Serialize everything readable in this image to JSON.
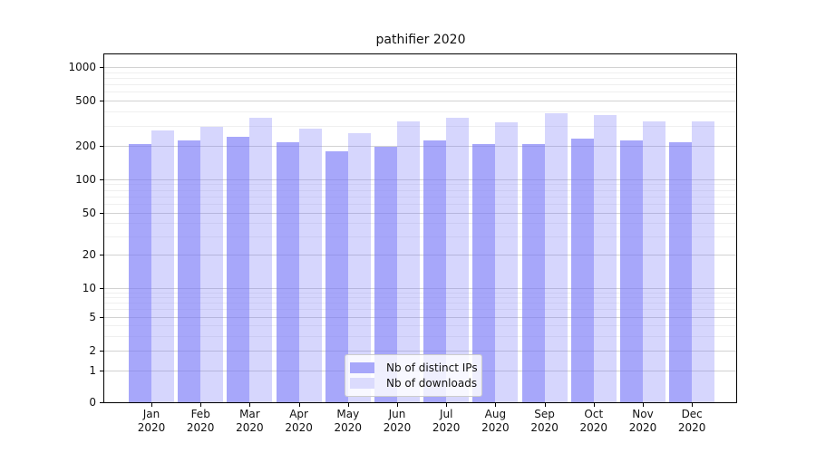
{
  "chart_data": {
    "type": "bar",
    "title": "pathifier 2020",
    "categories": [
      "Jan",
      "Feb",
      "Mar",
      "Apr",
      "May",
      "Jun",
      "Jul",
      "Aug",
      "Sep",
      "Oct",
      "Nov",
      "Dec"
    ],
    "category_year": "2020",
    "series": [
      {
        "name": "Nb of distinct IPs",
        "values": [
          205,
          220,
          240,
          215,
          178,
          195,
          220,
          205,
          205,
          230,
          220,
          215
        ],
        "color": "rgba(120,120,248,0.65)",
        "legend_color": "#a7a7fa"
      },
      {
        "name": "Nb of downloads",
        "values": [
          270,
          295,
          350,
          280,
          255,
          325,
          350,
          320,
          390,
          375,
          325,
          330
        ],
        "color": "rgba(120,120,248,0.30)",
        "legend_color": "#dbdbfd"
      }
    ],
    "yscale": "symlog",
    "yticks": [
      0,
      1,
      2,
      5,
      10,
      20,
      50,
      100,
      200,
      500,
      1000
    ],
    "ylim": [
      0,
      1150
    ],
    "xlabel": "",
    "ylabel": "",
    "grid": "both",
    "legend_position": "lower center",
    "colors": {
      "grid_major": "#d2d2d2",
      "grid_minor": "#efefef",
      "axis": "#000000"
    }
  }
}
